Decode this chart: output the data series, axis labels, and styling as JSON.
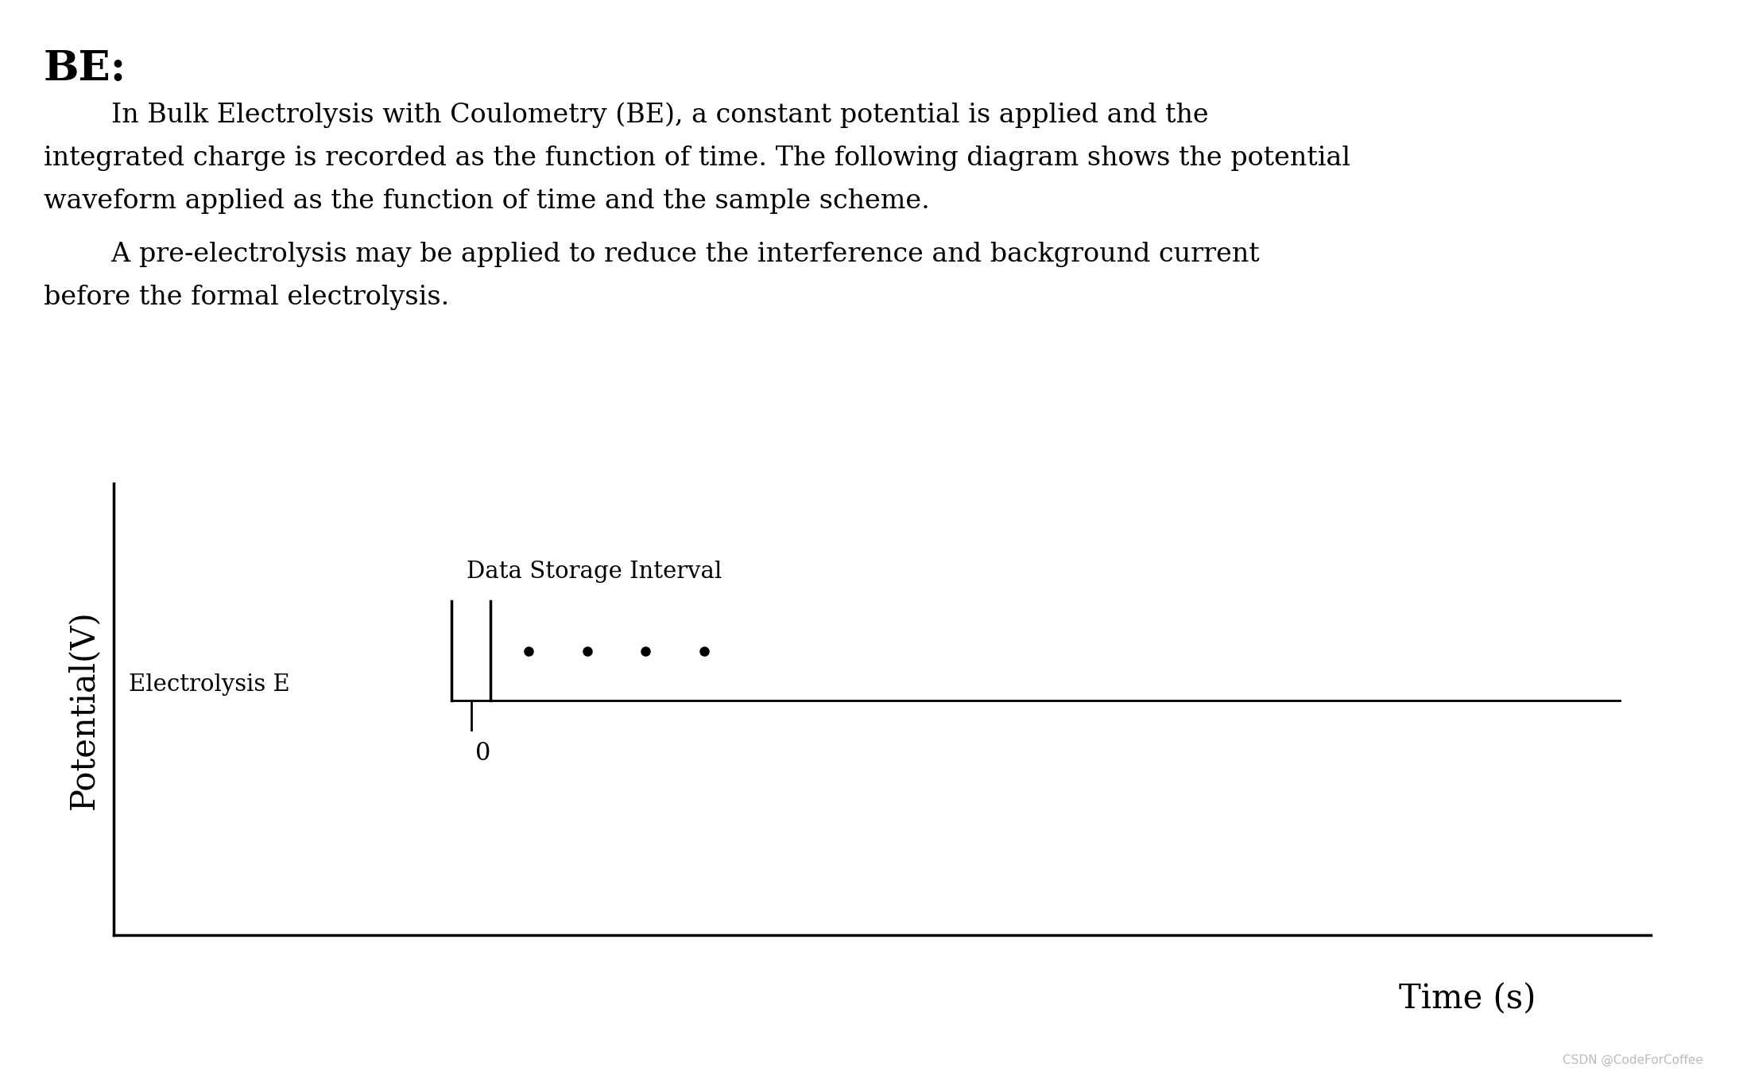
{
  "title": "BE:",
  "title_fontsize": 38,
  "paragraph1_line1": "        In Bulk Electrolysis with Coulometry (BE), a constant potential is applied and the",
  "paragraph1_line2": "integrated charge is recorded as the function of time. The following diagram shows the potential",
  "paragraph1_line3": "waveform applied as the function of time and the sample scheme.",
  "paragraph2_line1": "        A pre-electrolysis may be applied to reduce the interference and background current",
  "paragraph2_line2": "before the formal electrolysis.",
  "text_fontsize": 24,
  "ylabel": "Potential(V)",
  "xlabel": "Time (s)",
  "axis_label_fontsize": 30,
  "electrolysis_label": "Electrolysis E",
  "electrolysis_label_fontsize": 21,
  "data_storage_label": "Data Storage Interval",
  "data_storage_fontsize": 21,
  "zero_label": "0",
  "background_color": "#ffffff",
  "line_color": "#000000",
  "watermark": "CSDN @CodeForCoffee",
  "watermark_fontsize": 11
}
